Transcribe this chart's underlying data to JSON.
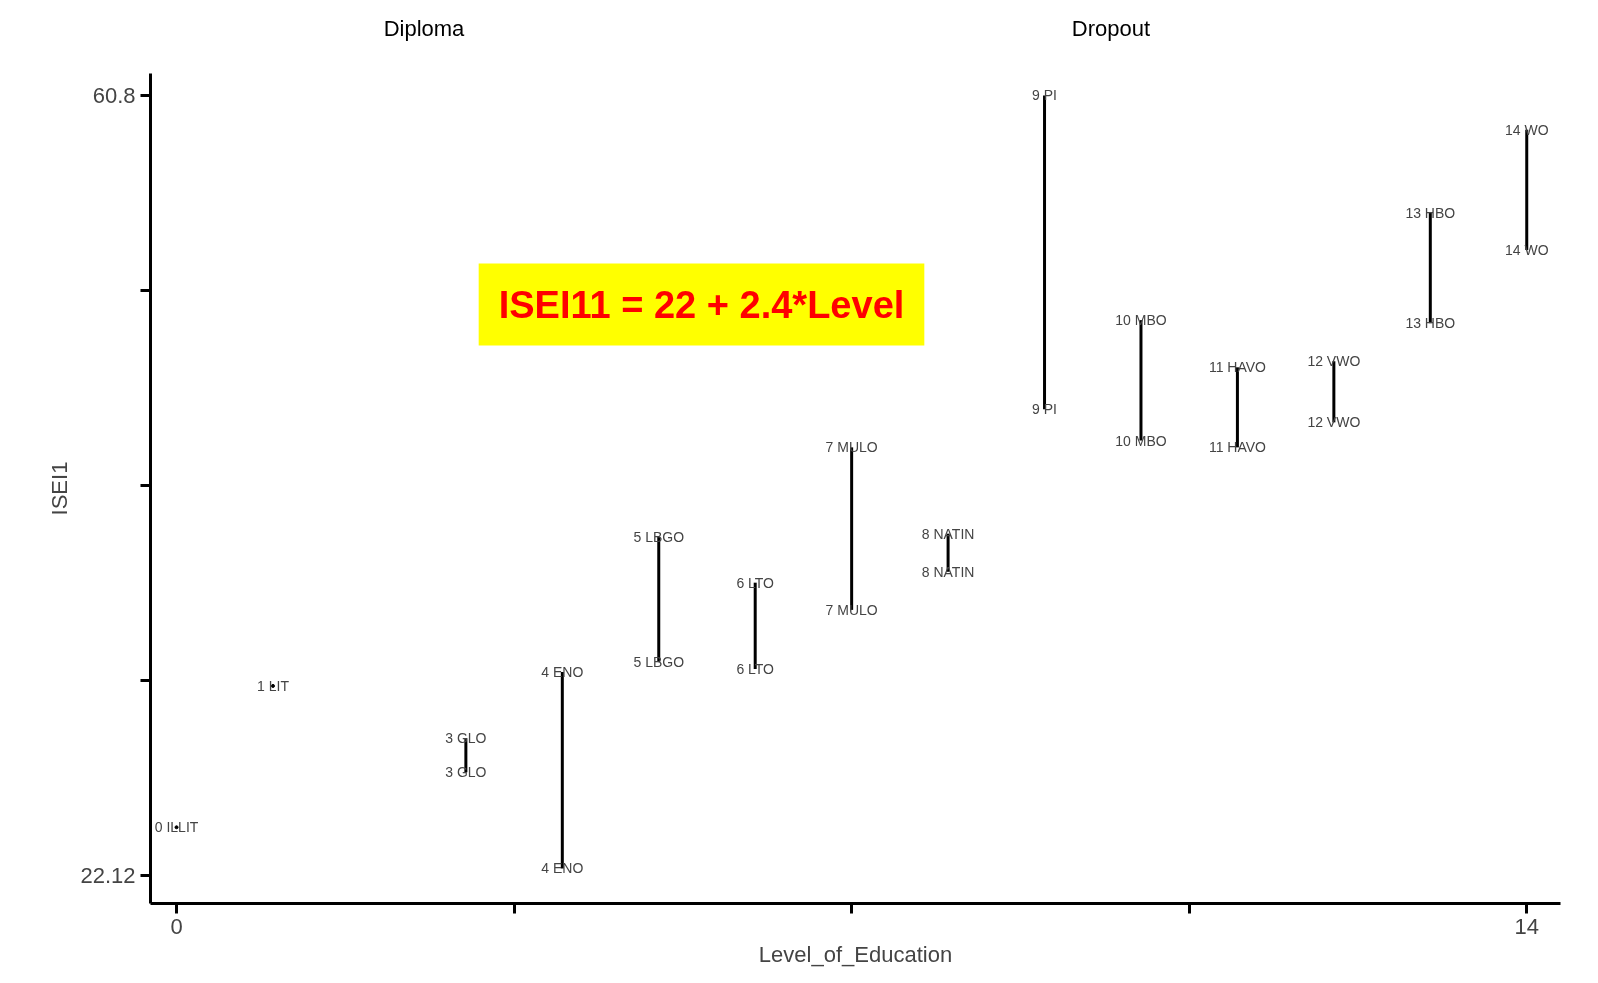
{
  "chart_data": {
    "type": "line",
    "xlabel": "Level_of_Education",
    "ylabel": "ISEI1",
    "xlim": [
      -0.27,
      14.35
    ],
    "ylim": [
      20.73,
      61.89
    ],
    "xticks": [
      0,
      {
        "value": 3.5,
        "label": null
      },
      {
        "value": 7,
        "label": null
      },
      {
        "value": 10.5,
        "label": null
      },
      14
    ],
    "yticks": [
      22.12,
      {
        "value": 31.79,
        "label": null
      },
      {
        "value": 41.46,
        "label": null
      },
      {
        "value": 51.13,
        "label": null
      },
      60.8
    ],
    "grid": false,
    "marker": "none",
    "line_style": "solid",
    "series": [
      {
        "type": "scatter",
        "color": "#000000",
        "x": [
          0,
          1
        ],
        "values": [
          24.51,
          31.52
        ]
      },
      {
        "color": "#000000",
        "x": [
          3,
          3
        ],
        "values": [
          28.93,
          27.24
        ]
      },
      {
        "color": "#000000",
        "x": [
          4,
          4
        ],
        "values": [
          32.21,
          22.47
        ]
      },
      {
        "color": "#000000",
        "x": [
          5,
          5
        ],
        "values": [
          38.92,
          32.71
        ]
      },
      {
        "color": "#000000",
        "x": [
          6,
          6
        ],
        "values": [
          36.64,
          32.36
        ]
      },
      {
        "color": "#000000",
        "x": [
          7,
          7
        ],
        "values": [
          43.35,
          35.29
        ]
      },
      {
        "color": "#000000",
        "x": [
          8,
          8
        ],
        "values": [
          39.07,
          37.18
        ]
      },
      {
        "color": "#000000",
        "x": [
          9,
          9
        ],
        "values": [
          60.8,
          45.24
        ]
      },
      {
        "color": "#000000",
        "x": [
          10,
          10
        ],
        "values": [
          49.66,
          43.69
        ]
      },
      {
        "color": "#000000",
        "x": [
          11,
          11
        ],
        "values": [
          47.32,
          43.35
        ]
      },
      {
        "color": "#000000",
        "x": [
          12,
          12
        ],
        "values": [
          47.62,
          44.59
        ]
      },
      {
        "color": "#000000",
        "x": [
          13,
          13
        ],
        "values": [
          54.98,
          49.51
        ]
      },
      {
        "color": "#000000",
        "x": [
          14,
          14
        ],
        "values": [
          59.1,
          53.14
        ]
      }
    ],
    "annotations": [
      "Diploma",
      "Dropout",
      "ISEI11 = 22 + 2.4*Level",
      {
        "text": "0 ILLIT",
        "x": 0,
        "y": 24.51
      },
      {
        "text": "1 LIT",
        "x": 1,
        "y": 31.52
      },
      {
        "text": "3 GLO",
        "x": 3,
        "y": 28.93
      },
      {
        "text": "3 GLO",
        "x": 3,
        "y": 27.24
      },
      {
        "text": "4 ENO",
        "x": 4,
        "y": 32.21
      },
      {
        "text": "4 ENO",
        "x": 4,
        "y": 22.47
      },
      {
        "text": "5 LBGO",
        "x": 5,
        "y": 38.92
      },
      {
        "text": "5 LBGO",
        "x": 5,
        "y": 32.71
      },
      {
        "text": "6 LTO",
        "x": 6,
        "y": 36.64
      },
      {
        "text": "6 LTO",
        "x": 6,
        "y": 32.36
      },
      {
        "text": "7 MULO",
        "x": 7,
        "y": 43.35
      },
      {
        "text": "7 MULO",
        "x": 7,
        "y": 35.29
      },
      {
        "text": "8 NATIN",
        "x": 8,
        "y": 39.07
      },
      {
        "text": "8 NATIN",
        "x": 8,
        "y": 37.18
      },
      {
        "text": "9 PI",
        "x": 9,
        "y": 60.8
      },
      {
        "text": "9 PI",
        "x": 9,
        "y": 45.24
      },
      {
        "text": "10 MBO",
        "x": 10,
        "y": 49.66
      },
      {
        "text": "10 MBO",
        "x": 10,
        "y": 43.69
      },
      {
        "text": "11 HAVO",
        "x": 11,
        "y": 47.32
      },
      {
        "text": "11 HAVO",
        "x": 11,
        "y": 43.35
      },
      {
        "text": "12 VWO",
        "x": 12,
        "y": 47.62
      },
      {
        "text": "12 VWO",
        "x": 12,
        "y": 44.59
      },
      {
        "text": "13 HBO",
        "x": 13,
        "y": 54.98
      },
      {
        "text": "13 HBO",
        "x": 13,
        "y": 49.51
      },
      {
        "text": "14 WO",
        "x": 14,
        "y": 59.1
      },
      {
        "text": "14 WO",
        "x": 14,
        "y": 53.14
      }
    ]
  }
}
